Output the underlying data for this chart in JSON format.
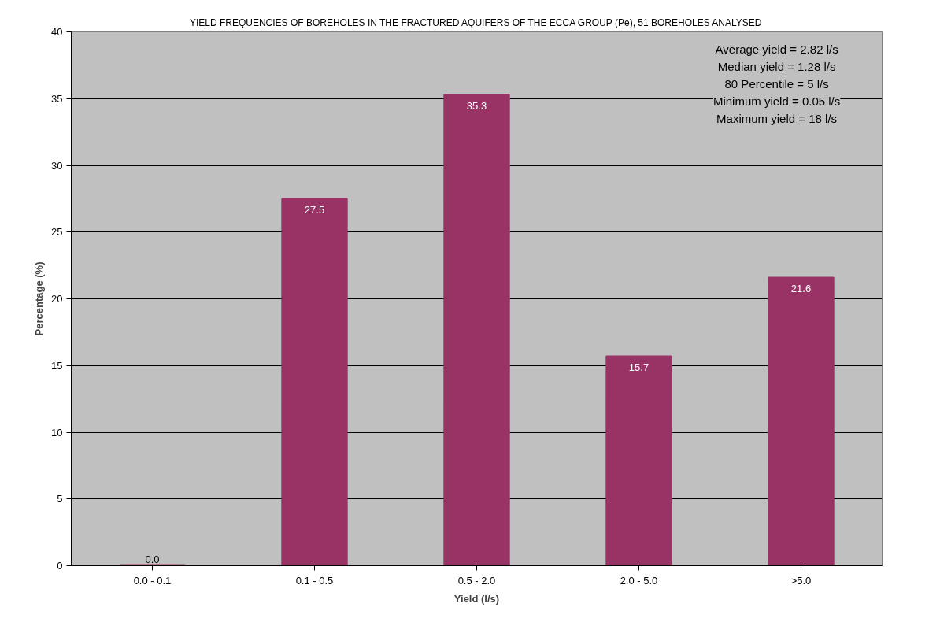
{
  "chart_data": {
    "type": "bar",
    "title": "YIELD FREQUENCIES OF BOREHOLES IN THE FRACTURED AQUIFERS OF THE ECCA GROUP (Pe), 51 BOREHOLES ANALYSED",
    "xlabel": "Yield (l/s)",
    "ylabel": "Percentage (%)",
    "categories": [
      "0.0 - 0.1",
      "0.1 - 0.5",
      "0.5 - 2.0",
      "2.0 - 5.0",
      ">5.0"
    ],
    "values": [
      0.0,
      27.5,
      35.3,
      15.7,
      21.6
    ],
    "value_labels": [
      "0.0",
      "27.5",
      "35.3",
      "15.7",
      "21.6"
    ],
    "color": "#993366",
    "ylim": [
      0,
      40
    ],
    "yticks": [
      0,
      5,
      10,
      15,
      20,
      25,
      30,
      35,
      40
    ],
    "grid": "y",
    "annotations": [
      "Average yield = 2.82 l/s",
      "Median yield = 1.28 l/s",
      "80 Percentile = 5 l/s",
      "Minimum yield = 0.05 l/s",
      "Maximum yield = 18 l/s"
    ]
  }
}
